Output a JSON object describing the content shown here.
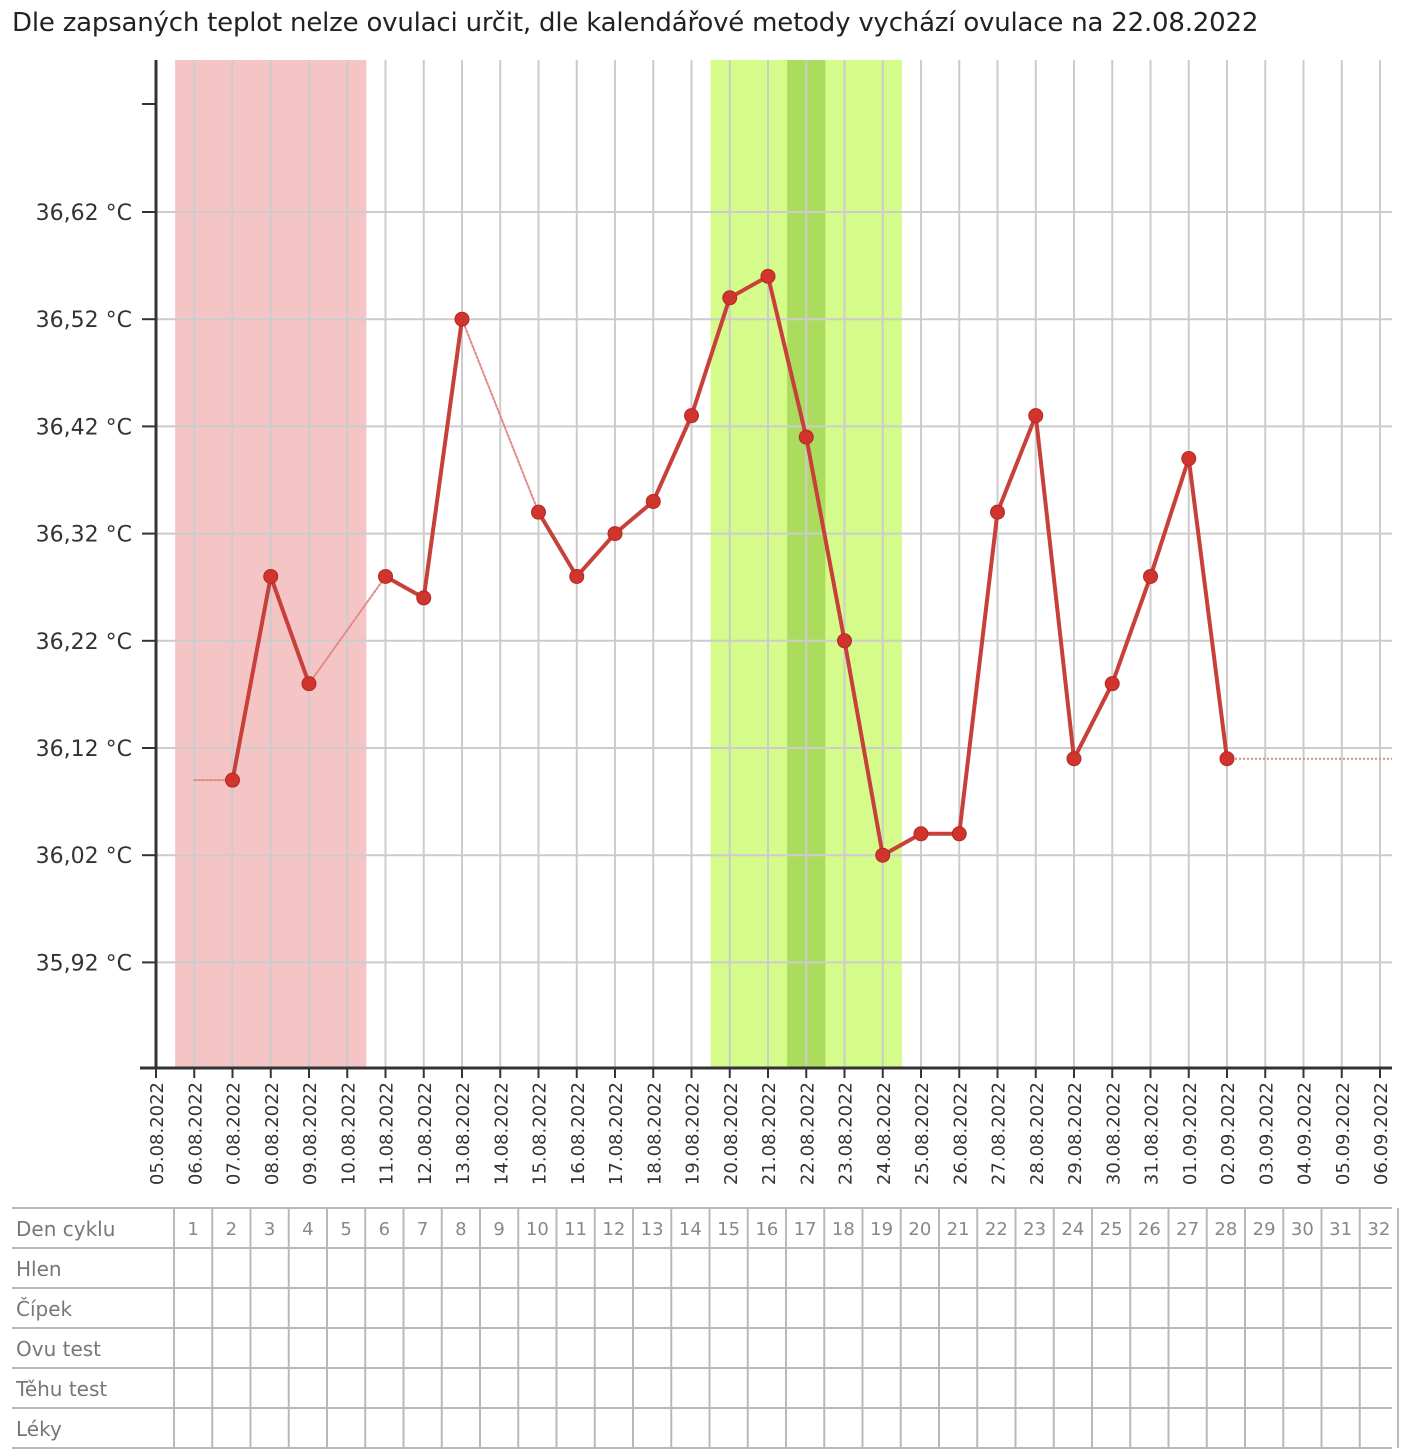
{
  "title": "Dle zapsaných teplot nelze ovulaci určit, dle kalendářové metody vychází ovulace na 22.08.2022",
  "colors": {
    "line": "#c8403a",
    "point": "#d0342c",
    "grid": "#cccccc",
    "menstruation": "#f5c4c4",
    "fertile": "#d5fb8a",
    "ovulation": "#acdc5e"
  },
  "chart_data": {
    "type": "line",
    "title": "Dle zapsaných teplot nelze ovulaci určit, dle kalendářové metody vychází ovulace na 22.08.2022",
    "categories": [
      "05.08.2022",
      "06.08.2022",
      "07.08.2022",
      "08.08.2022",
      "09.08.2022",
      "10.08.2022",
      "11.08.2022",
      "12.08.2022",
      "13.08.2022",
      "14.08.2022",
      "15.08.2022",
      "16.08.2022",
      "17.08.2022",
      "18.08.2022",
      "19.08.2022",
      "20.08.2022",
      "21.08.2022",
      "22.08.2022",
      "23.08.2022",
      "24.08.2022",
      "25.08.2022",
      "26.08.2022",
      "27.08.2022",
      "28.08.2022",
      "29.08.2022",
      "30.08.2022",
      "31.08.2022",
      "01.09.2022",
      "02.09.2022",
      "03.09.2022",
      "04.09.2022",
      "05.09.2022",
      "06.09.2022"
    ],
    "y_ticks": [
      "36,62 °C",
      "36,52 °C",
      "36,42 °C",
      "36,32 °C",
      "36,22 °C",
      "36,12 °C",
      "36,02 °C",
      "35,92 °C"
    ],
    "ylim": [
      35.82,
      36.72
    ],
    "y_tick_values": [
      36.62,
      36.52,
      36.42,
      36.32,
      36.22,
      36.12,
      36.02,
      35.92
    ],
    "series": [
      {
        "values": [
          null,
          36.09,
          36.09,
          36.28,
          36.18,
          null,
          36.28,
          36.26,
          36.52,
          null,
          36.34,
          36.28,
          36.32,
          36.35,
          36.43,
          36.54,
          36.56,
          36.41,
          36.22,
          36.02,
          36.04,
          36.04,
          36.34,
          36.43,
          36.11,
          36.18,
          36.28,
          36.39,
          36.11,
          null,
          null,
          null,
          null
        ],
        "measured": [
          false,
          false,
          true,
          true,
          true,
          false,
          true,
          true,
          true,
          false,
          true,
          true,
          true,
          true,
          true,
          true,
          true,
          true,
          true,
          true,
          true,
          true,
          true,
          true,
          true,
          true,
          true,
          true,
          true,
          false,
          false,
          false,
          false
        ]
      }
    ],
    "bands": [
      {
        "kind": "menstruation",
        "from_day": 1,
        "to_day": 5
      },
      {
        "kind": "fertile",
        "from_day": 15,
        "to_day": 19
      },
      {
        "kind": "ovulation",
        "from_day": 17,
        "to_day": 17
      }
    ],
    "grid": true
  },
  "table": {
    "rows": [
      "Den cyklu",
      "Hlen",
      "Čípek",
      "Ovu test",
      "Těhu test",
      "Léky"
    ],
    "cycle_days": [
      "1",
      "2",
      "3",
      "4",
      "5",
      "6",
      "7",
      "8",
      "9",
      "10",
      "11",
      "12",
      "13",
      "14",
      "15",
      "16",
      "17",
      "18",
      "19",
      "20",
      "21",
      "22",
      "23",
      "24",
      "25",
      "26",
      "27",
      "28",
      "29",
      "30",
      "31",
      "32"
    ]
  }
}
